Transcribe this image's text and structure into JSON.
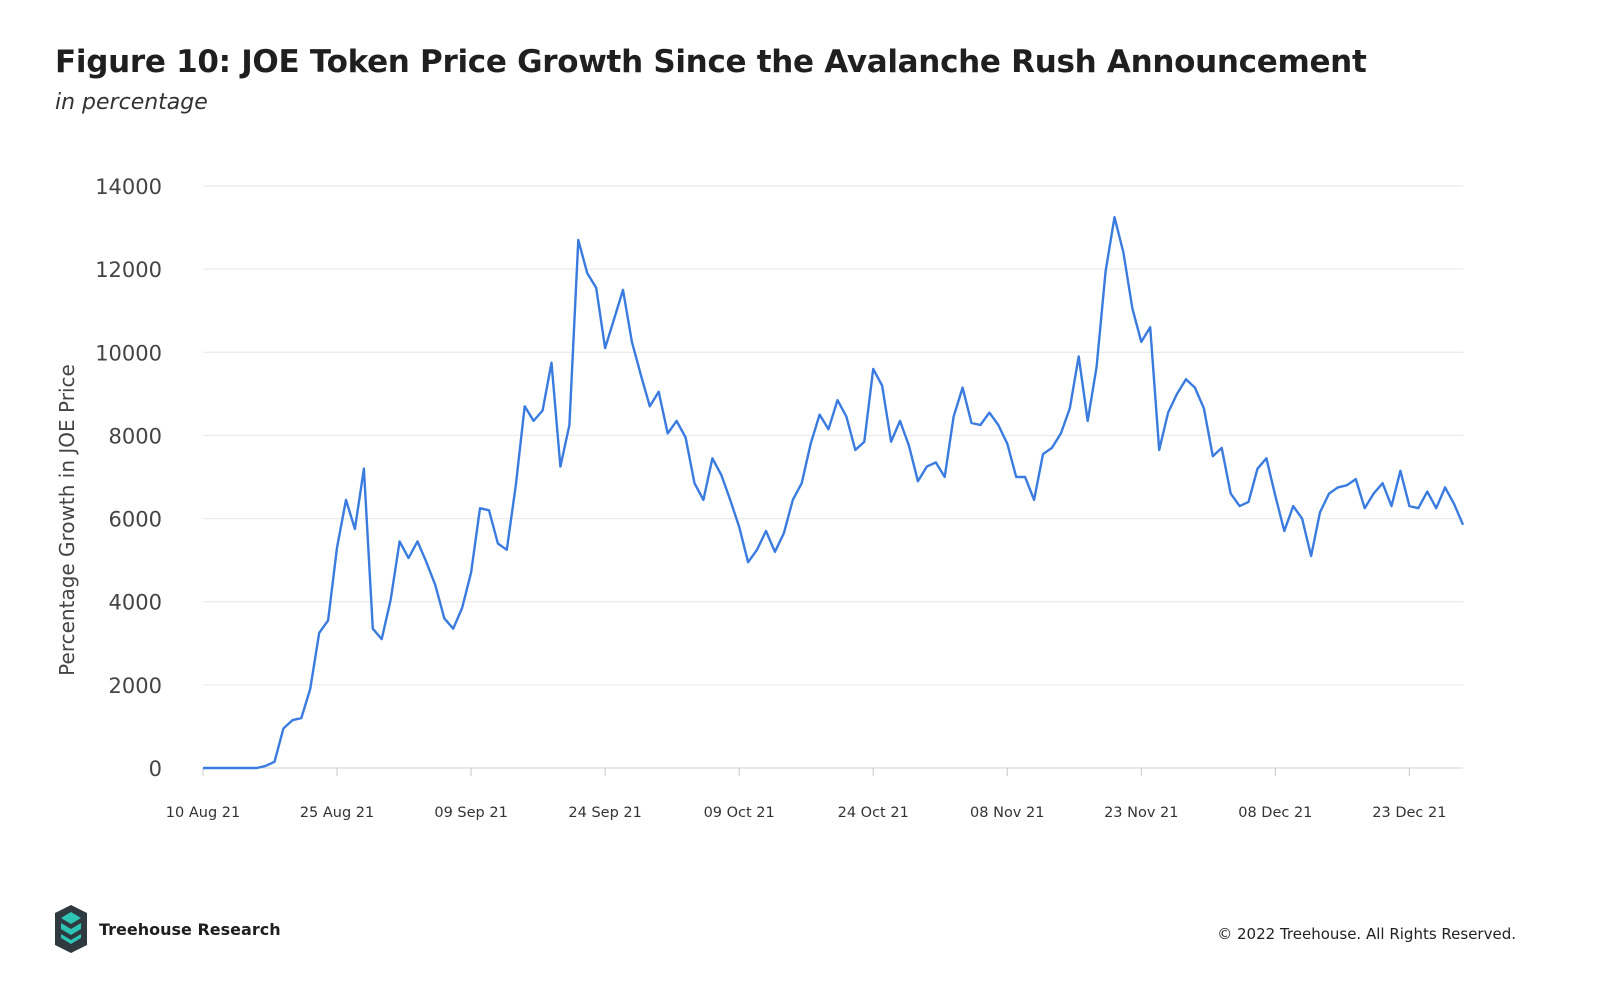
{
  "header": {
    "title": "Figure 10: JOE Token Price Growth Since the Avalanche Rush Announcement",
    "subtitle": "in percentage"
  },
  "footer": {
    "brand": "Treehouse Research",
    "copyright": "© 2022 Treehouse. All Rights Reserved."
  },
  "colors": {
    "line": "#3a7be0",
    "grid": "#e6e6e6",
    "logo_dark": "#2f3a40",
    "logo_teal": "#2ec4b6"
  },
  "icons": {
    "logo": "treehouse-logo-icon"
  },
  "chart_data": {
    "type": "line",
    "title": "Figure 10: JOE Token Price Growth Since the Avalanche Rush Announcement",
    "subtitle": "in percentage",
    "xlabel": "",
    "ylabel": "Percentage Growth in JOE Price",
    "ylim": [
      0,
      14000
    ],
    "yticks": [
      0,
      2000,
      4000,
      6000,
      8000,
      10000,
      12000,
      14000
    ],
    "x_tick_labels": [
      "10 Aug 21",
      "25 Aug 21",
      "09 Sep 21",
      "24 Sep 21",
      "09 Oct 21",
      "24 Oct 21",
      "08 Nov 21",
      "23 Nov 21",
      "08 Dec 21",
      "23 Dec 21"
    ],
    "x_start": "10 Aug 21",
    "x_end": "30 Dec 21",
    "grid": true,
    "legend": "none",
    "series": [
      {
        "values": [
          0,
          0,
          0,
          0,
          0,
          0,
          0,
          50,
          150,
          950,
          1150,
          1200,
          1900,
          3250,
          3550,
          5300,
          6450,
          5750,
          7200,
          3350,
          3100,
          4050,
          5450,
          5050,
          5450,
          4950,
          4400,
          3600,
          3350,
          3850,
          4700,
          6250,
          6200,
          5400,
          5250,
          6800,
          8700,
          8350,
          8600,
          9750,
          7250,
          8250,
          12700,
          11900,
          11550,
          10100,
          10800,
          11500,
          10250,
          9450,
          8700,
          9050,
          8050,
          8350,
          7950,
          6850,
          6450,
          7450,
          7050,
          6450,
          5800,
          4950,
          5250,
          5700,
          5200,
          5650,
          6450,
          6850,
          7800,
          8500,
          8150,
          8850,
          8450,
          7650,
          7850,
          9600,
          9200,
          7850,
          8350,
          7750,
          6900,
          7250,
          7350,
          7000,
          8450,
          9150,
          8300,
          8250,
          8550,
          8250,
          7800,
          7000,
          7000,
          6450,
          7550,
          7700,
          8050,
          8650,
          9900,
          8350,
          9650,
          11950,
          13250,
          12400,
          11050,
          10250,
          10600,
          7650,
          8550,
          9000,
          9350,
          9150,
          8650,
          7500,
          7700,
          6600,
          6300,
          6400,
          7200,
          7450,
          6550,
          5700,
          6300,
          6000,
          5100,
          6150,
          6600,
          6750,
          6800,
          6950,
          6250,
          6600,
          6850,
          6300,
          7150,
          6300,
          6250,
          6650,
          6250,
          6750,
          6350,
          5850
        ]
      }
    ]
  }
}
